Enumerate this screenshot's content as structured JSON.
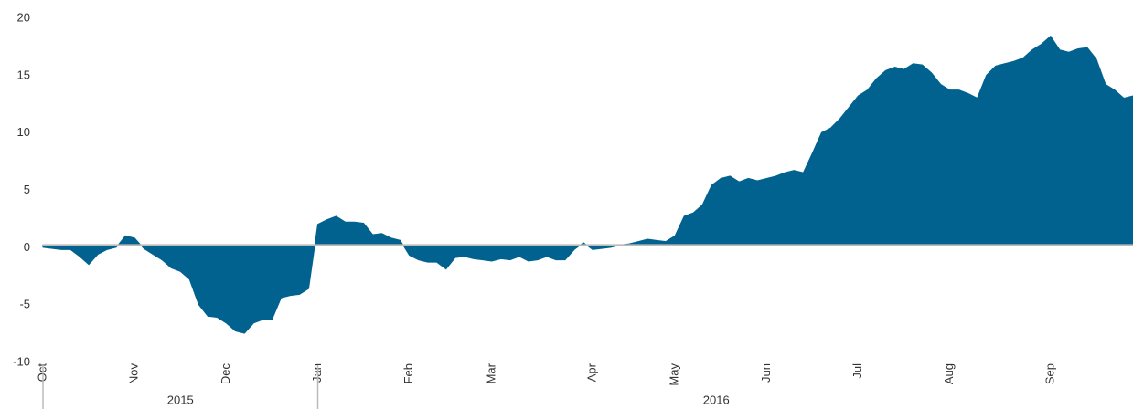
{
  "chart_data": {
    "type": "area",
    "color": "#02628f",
    "ylim": [
      -10,
      20
    ],
    "yticks": [
      -10,
      -5,
      0,
      5,
      10,
      15,
      20
    ],
    "categories": [
      "Oct",
      null,
      null,
      null,
      null,
      null,
      null,
      null,
      null,
      null,
      "Nov",
      null,
      null,
      null,
      null,
      null,
      null,
      null,
      null,
      null,
      "Dec",
      null,
      null,
      null,
      null,
      null,
      null,
      null,
      null,
      null,
      "Jan",
      null,
      null,
      null,
      null,
      null,
      null,
      null,
      null,
      null,
      "Feb",
      null,
      null,
      null,
      null,
      null,
      null,
      null,
      null,
      "Mar",
      null,
      null,
      null,
      null,
      null,
      null,
      null,
      null,
      null,
      null,
      "Apr",
      null,
      null,
      null,
      null,
      null,
      null,
      null,
      null,
      "May",
      null,
      null,
      null,
      null,
      null,
      null,
      null,
      null,
      null,
      "Jun",
      null,
      null,
      null,
      null,
      null,
      null,
      null,
      null,
      null,
      "Jul",
      null,
      null,
      null,
      null,
      null,
      null,
      null,
      null,
      null,
      "Aug",
      null,
      null,
      null,
      null,
      null,
      null,
      null,
      null,
      null,
      null,
      "Sep",
      null,
      null,
      null,
      null,
      null,
      null,
      null,
      null,
      null
    ],
    "x_groups": [
      {
        "label": "2015",
        "from": 0
      },
      {
        "label": "2016",
        "from": 30
      }
    ],
    "values": [
      -0.2,
      -0.3,
      -0.4,
      -0.4,
      -1.0,
      -1.7,
      -0.8,
      -0.4,
      -0.2,
      0.8,
      0.6,
      -0.3,
      -0.8,
      -1.3,
      -2.0,
      -2.3,
      -3.0,
      -5.2,
      -6.2,
      -6.3,
      -6.8,
      -7.5,
      -7.7,
      -6.8,
      -6.5,
      -6.5,
      -4.6,
      -4.4,
      -4.3,
      -3.8,
      1.8,
      2.2,
      2.5,
      2.0,
      2.0,
      1.9,
      0.9,
      1.0,
      0.6,
      0.4,
      -0.9,
      -1.3,
      -1.5,
      -1.5,
      -2.1,
      -1.1,
      -1.0,
      -1.2,
      -1.3,
      -1.4,
      -1.2,
      -1.3,
      -1.0,
      -1.4,
      -1.3,
      -1.0,
      -1.3,
      -1.3,
      -0.4,
      0.2,
      -0.4,
      -0.3,
      -0.2,
      0,
      0.1,
      0.3,
      0.5,
      0.4,
      0.3,
      0.8,
      2.5,
      2.8,
      3.5,
      5.2,
      5.8,
      6.0,
      5.5,
      5.8,
      5.6,
      5.8,
      6.0,
      6.3,
      6.5,
      6.3,
      8.0,
      9.8,
      10.2,
      11.0,
      12.0,
      13.0,
      13.5,
      14.5,
      15.2,
      15.5,
      15.3,
      15.8,
      15.7,
      15.0,
      14.0,
      13.5,
      13.5,
      13.2,
      12.8,
      14.8,
      15.6,
      15.8,
      16.0,
      16.3,
      17.0,
      17.5,
      18.2,
      17.0,
      16.8,
      17.1,
      17.2,
      16.2,
      14.0,
      13.5,
      12.8,
      13.0
    ]
  }
}
